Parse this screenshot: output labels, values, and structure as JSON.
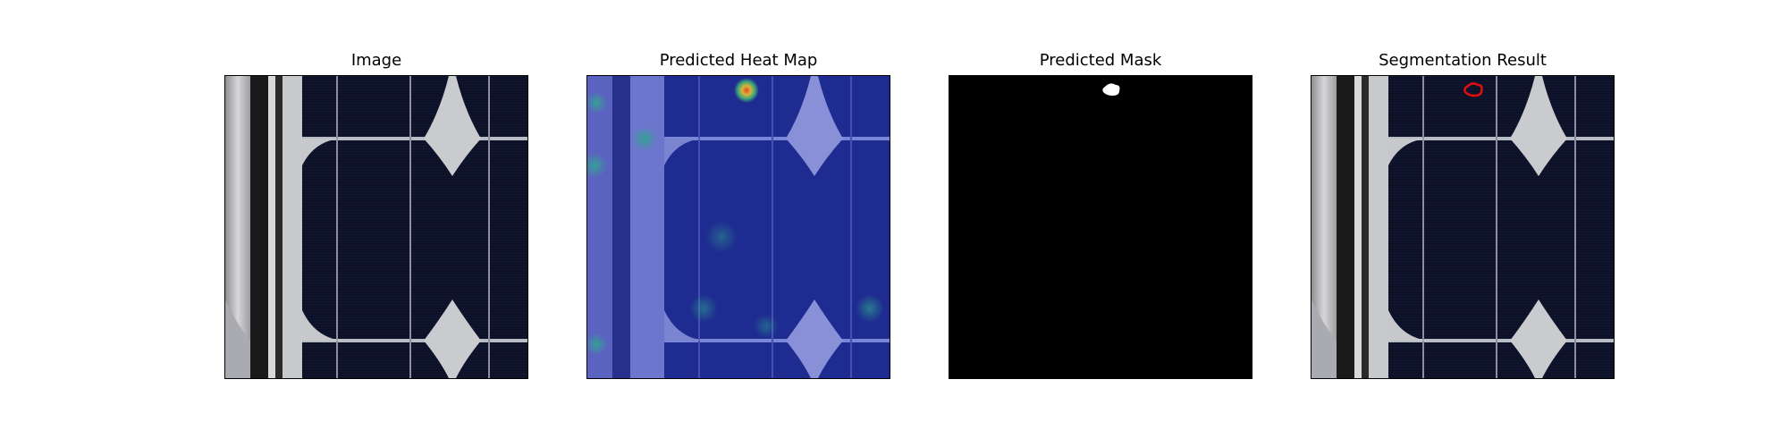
{
  "figure": {
    "panels": [
      {
        "title": "Image"
      },
      {
        "title": "Predicted Heat Map"
      },
      {
        "title": "Predicted Mask"
      },
      {
        "title": "Segmentation Result"
      }
    ]
  }
}
